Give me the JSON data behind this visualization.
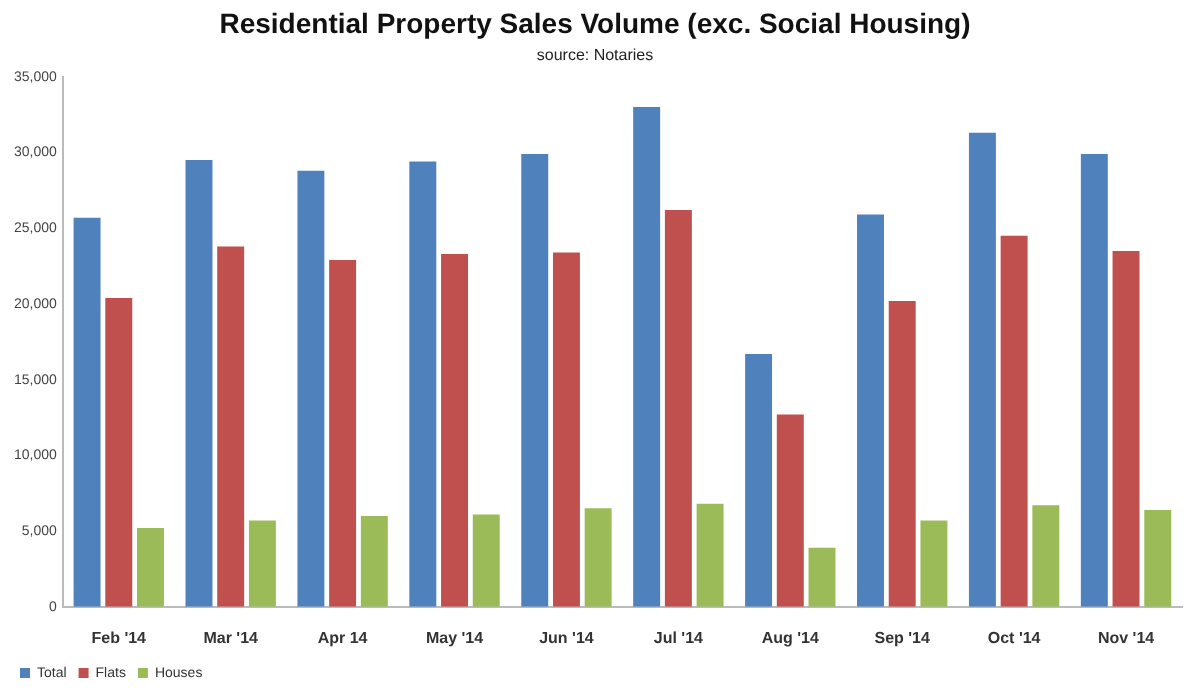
{
  "chart_data": {
    "type": "bar",
    "title": "Residential Property Sales Volume (exc. Social Housing)",
    "subtitle": "source: Notaries",
    "categories": [
      "Feb '14",
      "Mar '14",
      "Apr 14",
      "May '14",
      "Jun '14",
      "Jul '14",
      "Aug '14",
      "Sep '14",
      "Oct '14",
      "Nov '14"
    ],
    "series": [
      {
        "name": "Total",
        "color": "#4f81bd",
        "values": [
          25700,
          29500,
          28800,
          29400,
          29900,
          33000,
          16700,
          25900,
          31300,
          29900
        ]
      },
      {
        "name": "Flats",
        "color": "#c0504d",
        "values": [
          20400,
          23800,
          22900,
          23300,
          23400,
          26200,
          12700,
          20200,
          24500,
          23500
        ]
      },
      {
        "name": "Houses",
        "color": "#9bbb59",
        "values": [
          5200,
          5700,
          6000,
          6100,
          6500,
          6800,
          3900,
          5700,
          6700,
          6400
        ]
      }
    ],
    "ylim": [
      0,
      35000
    ],
    "yticks": [
      0,
      {
        "value": 5000,
        "label": "5,000"
      },
      {
        "value": 10000,
        "label": "10,000"
      },
      {
        "value": 15000,
        "label": "15,000"
      },
      {
        "value": 20000,
        "label": "20,000"
      },
      {
        "value": 25000,
        "label": "25,000"
      },
      {
        "value": 30000,
        "label": "30,000"
      },
      {
        "value": 35000,
        "label": "35,000"
      }
    ],
    "grid": false,
    "legend": "bottom left"
  }
}
